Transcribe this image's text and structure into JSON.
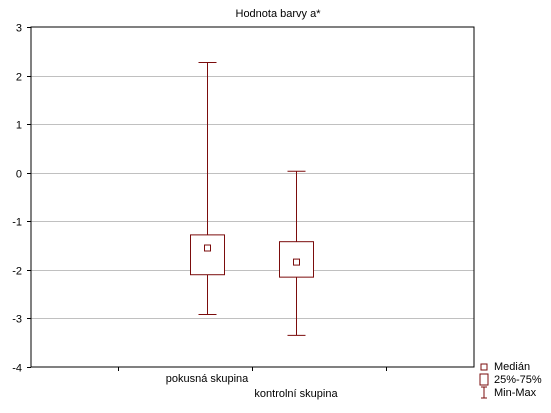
{
  "chart_data": {
    "type": "boxplot",
    "title": "Hodnota barvy a*",
    "xlabel": "",
    "ylabel": "",
    "ylim": [
      -4,
      3
    ],
    "yticks": [
      3,
      2,
      1,
      0,
      -1,
      -2,
      -3,
      -4
    ],
    "ytick_labels": [
      "3",
      "2",
      "1",
      "0",
      "-1",
      "-2",
      "-3",
      "-4"
    ],
    "grid": true,
    "legend_position": "bottom-right",
    "categories": [
      "pokusná skupina",
      "kontrolní skupina"
    ],
    "series": [
      {
        "category": "pokusná skupina",
        "median": -1.55,
        "q1": -2.1,
        "q3": -1.28,
        "min": -2.92,
        "max": 2.27
      },
      {
        "category": "kontrolní skupina",
        "median": -1.84,
        "q1": -2.15,
        "q3": -1.42,
        "min": -3.35,
        "max": 0.03
      }
    ],
    "legend": [
      {
        "key": "median",
        "label": "Medián"
      },
      {
        "key": "box",
        "label": "25%-75%"
      },
      {
        "key": "whisker",
        "label": "Min-Max"
      }
    ],
    "colors": {
      "series": "#7b0c0c",
      "grid": "#c0c0c0",
      "frame": "#000000",
      "text": "#000000"
    }
  }
}
